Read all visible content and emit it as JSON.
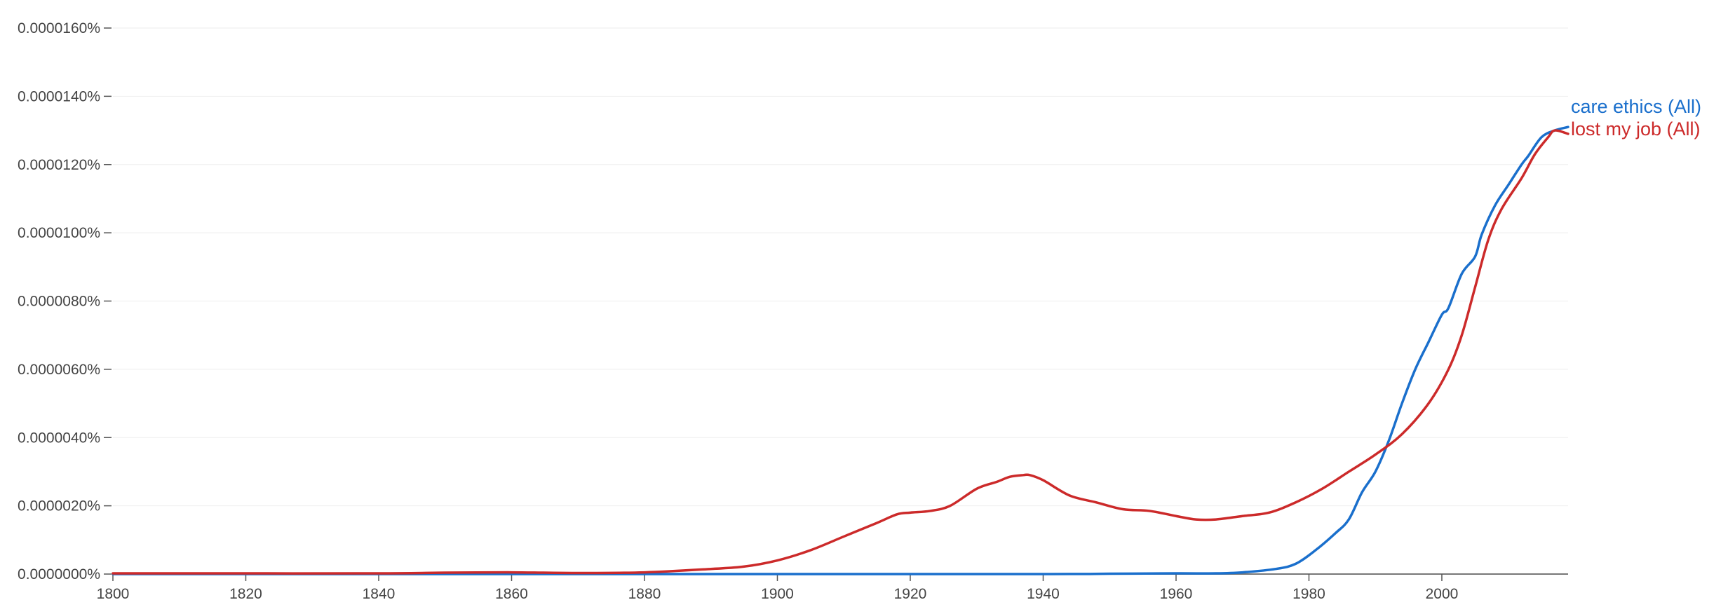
{
  "chart_data": {
    "type": "line",
    "title": "",
    "xlabel": "",
    "ylabel": "",
    "xlim": [
      1800,
      2019
    ],
    "ylim": [
      0,
      1.6e-07
    ],
    "grid": true,
    "legend": "inline-right",
    "x_ticks": [
      1800,
      1820,
      1840,
      1860,
      1880,
      1900,
      1920,
      1940,
      1960,
      1980,
      2000
    ],
    "x_tick_labels": [
      "1800",
      "1820",
      "1840",
      "1860",
      "1880",
      "1900",
      "1920",
      "1940",
      "1960",
      "1980",
      "2000"
    ],
    "y_ticks": [
      0,
      2e-08,
      4e-08,
      6e-08,
      8e-08,
      1e-07,
      1.2e-07,
      1.4e-07,
      1.6e-07
    ],
    "y_tick_labels": [
      "0.0000000%",
      "0.0000020%",
      "0.0000040%",
      "0.0000060%",
      "0.0000080%",
      "0.0000100%",
      "0.0000120%",
      "0.0000140%",
      "0.0000160%"
    ],
    "series": [
      {
        "name": "care ethics (All)",
        "color": "#1a6fcc",
        "points": [
          [
            1800,
            0
          ],
          [
            1900,
            0
          ],
          [
            1940,
            0
          ],
          [
            1950,
            1e-10
          ],
          [
            1960,
            2e-10
          ],
          [
            1966,
            2e-10
          ],
          [
            1970,
            5e-10
          ],
          [
            1975,
            1.5e-09
          ],
          [
            1978,
            3e-09
          ],
          [
            1981,
            7e-09
          ],
          [
            1984,
            1.2e-08
          ],
          [
            1986,
            1.6e-08
          ],
          [
            1988,
            2.4e-08
          ],
          [
            1990,
            3e-08
          ],
          [
            1992,
            3.9e-08
          ],
          [
            1994,
            5e-08
          ],
          [
            1996,
            6e-08
          ],
          [
            1998,
            6.8e-08
          ],
          [
            2000,
            7.6e-08
          ],
          [
            2001,
            7.8e-08
          ],
          [
            2003,
            8.8e-08
          ],
          [
            2005,
            9.3e-08
          ],
          [
            2006,
            9.95e-08
          ],
          [
            2008,
            1.08e-07
          ],
          [
            2010,
            1.14e-07
          ],
          [
            2012,
            1.2e-07
          ],
          [
            2013,
            1.225e-07
          ],
          [
            2015,
            1.28e-07
          ],
          [
            2017,
            1.3e-07
          ],
          [
            2019,
            1.31e-07
          ]
        ]
      },
      {
        "name": "lost my job (All)",
        "color": "#cc2a2a",
        "points": [
          [
            1800,
            2e-10
          ],
          [
            1820,
            2e-10
          ],
          [
            1840,
            2e-10
          ],
          [
            1850,
            4e-10
          ],
          [
            1860,
            5e-10
          ],
          [
            1870,
            3e-10
          ],
          [
            1880,
            5e-10
          ],
          [
            1890,
            1.5e-09
          ],
          [
            1895,
            2.2e-09
          ],
          [
            1900,
            4e-09
          ],
          [
            1905,
            7e-09
          ],
          [
            1910,
            1.1e-08
          ],
          [
            1915,
            1.5e-08
          ],
          [
            1918,
            1.75e-08
          ],
          [
            1920,
            1.8e-08
          ],
          [
            1923,
            1.85e-08
          ],
          [
            1926,
            2e-08
          ],
          [
            1930,
            2.5e-08
          ],
          [
            1933,
            2.7e-08
          ],
          [
            1935,
            2.85e-08
          ],
          [
            1937,
            2.9e-08
          ],
          [
            1938,
            2.9e-08
          ],
          [
            1940,
            2.75e-08
          ],
          [
            1944,
            2.3e-08
          ],
          [
            1948,
            2.1e-08
          ],
          [
            1952,
            1.9e-08
          ],
          [
            1956,
            1.85e-08
          ],
          [
            1960,
            1.7e-08
          ],
          [
            1963,
            1.6e-08
          ],
          [
            1966,
            1.6e-08
          ],
          [
            1970,
            1.7e-08
          ],
          [
            1974,
            1.8e-08
          ],
          [
            1978,
            2.1e-08
          ],
          [
            1982,
            2.5e-08
          ],
          [
            1986,
            3e-08
          ],
          [
            1990,
            3.5e-08
          ],
          [
            1994,
            4.1e-08
          ],
          [
            1998,
            5e-08
          ],
          [
            2001,
            6e-08
          ],
          [
            2003,
            7e-08
          ],
          [
            2005,
            8.4e-08
          ],
          [
            2007,
            9.8e-08
          ],
          [
            2009,
            1.07e-07
          ],
          [
            2012,
            1.16e-07
          ],
          [
            2014,
            1.23e-07
          ],
          [
            2016,
            1.28e-07
          ],
          [
            2017,
            1.3e-07
          ],
          [
            2019,
            1.29e-07
          ]
        ]
      }
    ]
  }
}
